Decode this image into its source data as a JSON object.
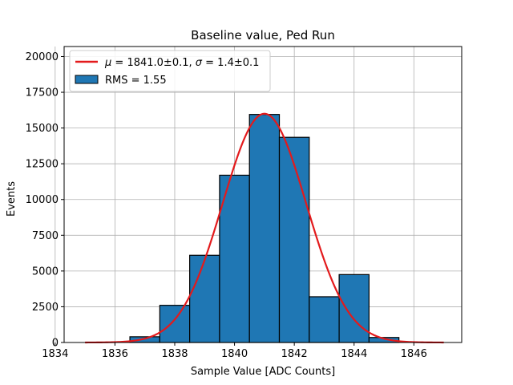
{
  "chart_data": {
    "type": "bar",
    "title": "Baseline value, Ped Run",
    "xlabel": "Sample Value [ADC Counts]",
    "ylabel": "Events",
    "xlim": [
      1834.3,
      1847.6
    ],
    "ylim": [
      0,
      20700
    ],
    "grid": true,
    "legend_position": "top-left",
    "x_ticks": [
      1834,
      1836,
      1838,
      1840,
      1842,
      1844,
      1846
    ],
    "x_tick_labels": [
      "1834",
      "1836",
      "1838",
      "1840",
      "1842",
      "1844",
      "1846"
    ],
    "y_ticks": [
      0,
      2500,
      5000,
      7500,
      10000,
      12500,
      15000,
      17500,
      20000
    ],
    "y_tick_labels": [
      "0",
      "2500",
      "5000",
      "7500",
      "10000",
      "12500",
      "15000",
      "17500",
      "20000"
    ],
    "histogram": {
      "name": "RMS = 1.55",
      "color": "#1f77b4",
      "edge_color": "#000000",
      "bin_edges": [
        1836.5,
        1837.5,
        1838.5,
        1839.5,
        1840.5,
        1841.5,
        1842.5,
        1843.5,
        1844.5,
        1845.5
      ],
      "values": [
        400,
        2600,
        6100,
        11700,
        15950,
        14350,
        3200,
        4750,
        350
      ]
    },
    "fit": {
      "name": "$\\mu = 1841.0 \\pm 0.1$, $\\sigma = 1.4 \\pm 0.1$",
      "color": "#e31a1c",
      "type": "gaussian",
      "amplitude": 16000,
      "mean": 1841.0,
      "sigma": 1.4,
      "x_range": [
        1835,
        1847
      ]
    },
    "legend": [
      {
        "label_parts": [
          "μ",
          " = 1841.0±0.1, ",
          "σ",
          " = 1.4±0.1"
        ],
        "kind": "line",
        "color": "#e31a1c"
      },
      {
        "label": "RMS = 1.55",
        "kind": "patch",
        "color": "#1f77b4"
      }
    ]
  }
}
